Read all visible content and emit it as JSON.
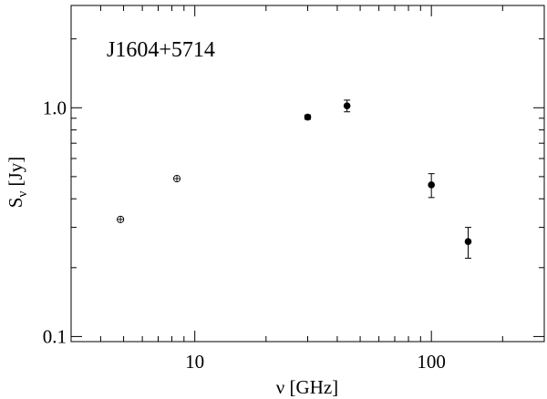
{
  "chart_data": {
    "type": "scatter",
    "title": "J1604+5714",
    "xlabel": "ν [GHz]",
    "ylabel": "S",
    "ylabel_sub": "ν",
    "ylabel_unit": " [Jy]",
    "x_scale": "log",
    "y_scale": "log",
    "xlim": [
      3,
      300
    ],
    "ylim": [
      0.095,
      2.8
    ],
    "x_tick_labels": [
      {
        "value": 10,
        "label": "10"
      },
      {
        "value": 100,
        "label": "100"
      }
    ],
    "y_tick_labels": [
      {
        "value": 0.1,
        "label": "0.1"
      },
      {
        "value": 1.0,
        "label": "1.0"
      }
    ],
    "grid": false,
    "series": [
      {
        "marker": "open-circle-cross",
        "points": [
          {
            "x": 4.85,
            "y": 0.325
          },
          {
            "x": 8.4,
            "y": 0.49
          }
        ]
      },
      {
        "marker": "filled-circle",
        "points": [
          {
            "x": 30,
            "y": 0.91,
            "err_low": 0.02,
            "err_high": 0.02
          },
          {
            "x": 44,
            "y": 1.02,
            "err_low": 0.06,
            "err_high": 0.06
          },
          {
            "x": 100,
            "y": 0.46,
            "err_low": 0.055,
            "err_high": 0.055
          },
          {
            "x": 143,
            "y": 0.26,
            "err_low": 0.04,
            "err_high": 0.04
          }
        ]
      }
    ]
  }
}
